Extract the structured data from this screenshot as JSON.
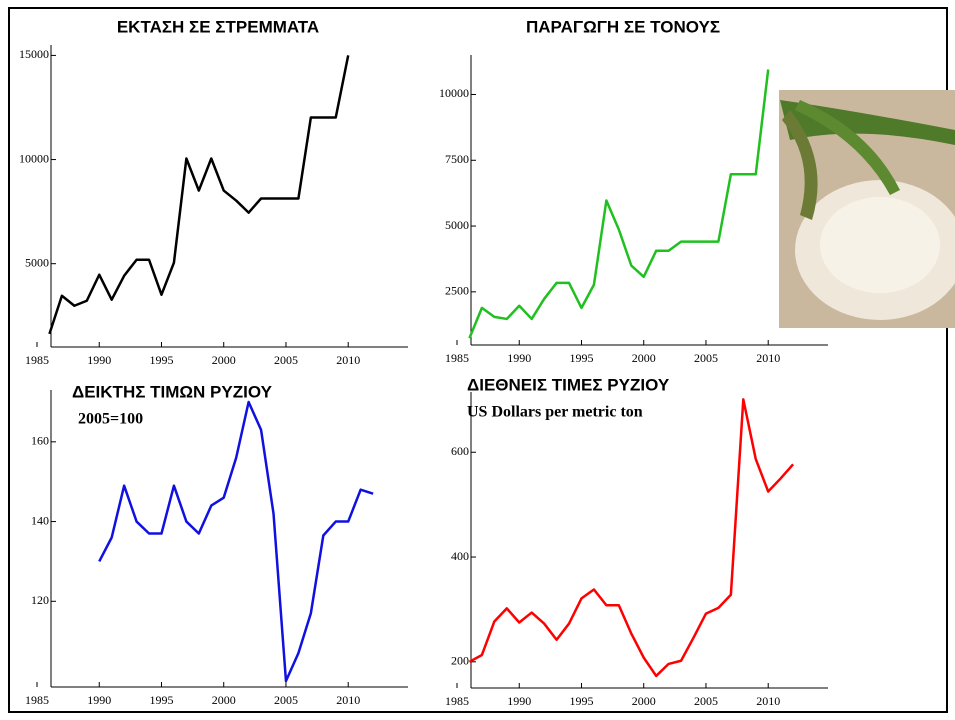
{
  "chart_data": [
    {
      "type": "line",
      "title": "ΕΚΤΑΣΗ ΣΕ ΣΤΡΕΜΜΑΤΑ",
      "color": "#000000",
      "x": [
        1986,
        1987,
        1988,
        1989,
        1990,
        1991,
        1992,
        1993,
        1994,
        1995,
        1996,
        1997,
        1998,
        1999,
        2000,
        2001,
        2002,
        2003,
        2004,
        2005,
        2006,
        2007,
        2008,
        2009,
        2010
      ],
      "values": [
        1630,
        3460,
        2980,
        3220,
        4470,
        3270,
        4420,
        5190,
        5190,
        3510,
        5050,
        10050,
        8510,
        10050,
        8510,
        8030,
        7450,
        8130,
        8130,
        8130,
        8130,
        12020,
        12020,
        12020,
        15000
      ],
      "xlim": [
        1985,
        2014
      ],
      "xticks": [
        1985,
        1990,
        1995,
        2000,
        2005,
        2010
      ],
      "ylim": [
        1000,
        15500
      ],
      "yticks": [
        5000,
        10000,
        15000
      ]
    },
    {
      "type": "line",
      "title": "ΠΑΡΑΓΩΓΗ ΣΕ ΤΟΝΟΥΣ",
      "color": "#1fc01f",
      "x": [
        1986,
        1987,
        1988,
        1989,
        1990,
        1991,
        1992,
        1993,
        1994,
        1995,
        1996,
        1997,
        1998,
        1999,
        2000,
        2001,
        2002,
        2003,
        2004,
        2005,
        2006,
        2007,
        2008,
        2009,
        2010
      ],
      "values": [
        740,
        1890,
        1550,
        1470,
        1970,
        1470,
        2230,
        2840,
        2840,
        1890,
        2770,
        5970,
        4870,
        3500,
        3070,
        4060,
        4060,
        4410,
        4410,
        4410,
        4410,
        6970,
        6970,
        6970,
        10950
      ],
      "xlim": [
        1985,
        2014
      ],
      "xticks": [
        1985,
        1990,
        1995,
        2000,
        2005,
        2010
      ],
      "ylim": [
        480,
        11500
      ],
      "yticks": [
        2500,
        5000,
        7500,
        10000
      ]
    },
    {
      "type": "line",
      "title": "ΔΕΙΚΤΗΣ ΤΙΜΩΝ ΡΥΖΙΟΥ",
      "subtitle": "2005=100",
      "color": "#1010e0",
      "x": [
        1990,
        1991,
        1992,
        1993,
        1994,
        1995,
        1996,
        1997,
        1998,
        1999,
        2000,
        2001,
        2002,
        2003,
        2004,
        2005,
        2006,
        2007,
        2008,
        2009,
        2010,
        2011,
        2012
      ],
      "values": [
        130,
        136,
        149,
        140,
        137,
        137,
        149,
        140,
        137,
        144,
        146,
        156,
        170,
        163,
        142,
        100,
        107,
        117,
        136.5,
        140,
        140,
        148,
        147
      ],
      "xlim": [
        1985,
        2014
      ],
      "xticks": [
        1985,
        1990,
        1995,
        2000,
        2005,
        2010
      ],
      "ylim": [
        98.5,
        173
      ],
      "yticks": [
        120,
        140,
        160
      ]
    },
    {
      "type": "line",
      "title": "ΔΙΕΘΝΕΙΣ ΤΙΜΕΣ ΡΥΖΙΟΥ",
      "subtitle": "US Dollars per metric ton",
      "color": "#ff0000",
      "x": [
        1986,
        1987,
        1988,
        1989,
        1990,
        1991,
        1992,
        1993,
        1994,
        1995,
        1996,
        1997,
        1998,
        1999,
        2000,
        2001,
        2002,
        2003,
        2004,
        2005,
        2006,
        2007,
        2008,
        2009,
        2010,
        2011,
        2012
      ],
      "values": [
        200,
        213,
        277,
        302,
        275,
        294,
        273,
        242,
        273,
        321,
        338,
        308,
        308,
        254,
        208,
        173,
        196,
        202,
        246,
        292,
        303,
        328,
        701,
        587,
        525,
        550,
        577
      ],
      "xlim": [
        1985,
        2014
      ],
      "xticks": [
        1985,
        1990,
        1995,
        2000,
        2005,
        2010
      ],
      "ylim": [
        150,
        715
      ],
      "yticks": [
        200,
        400,
        600
      ]
    }
  ]
}
